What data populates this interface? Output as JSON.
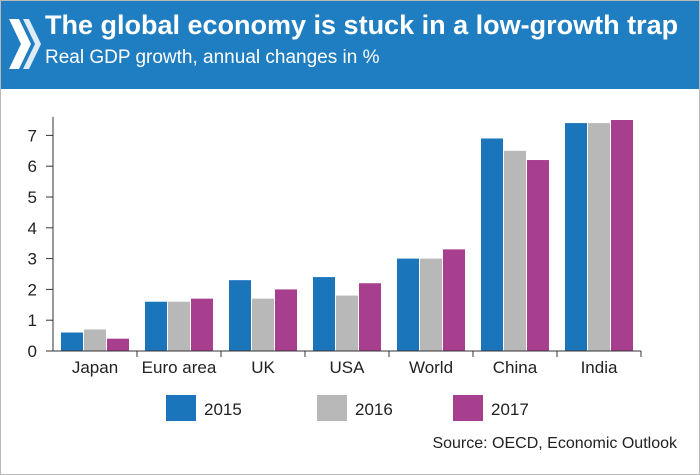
{
  "header": {
    "title": "The global economy is stuck in a low-growth trap",
    "subtitle": "Real GDP growth, annual changes in %"
  },
  "source": "Source: OECD, Economic Outlook",
  "colors": {
    "header_bg": "#1f7ec1",
    "series_2015": "#1b75bb",
    "series_2016": "#b8b8b8",
    "series_2017": "#a83e8e"
  },
  "chart_data": {
    "type": "bar",
    "title": "The global economy is stuck in a low-growth trap",
    "subtitle": "Real GDP growth, annual changes in %",
    "xlabel": "",
    "ylabel": "",
    "ylim": [
      0,
      7.6
    ],
    "yticks": [
      0,
      1,
      2,
      3,
      4,
      5,
      6,
      7
    ],
    "grid": false,
    "legend": "bottom",
    "categories": [
      "Japan",
      "Euro area",
      "UK",
      "USA",
      "World",
      "China",
      "India"
    ],
    "series": [
      {
        "name": "2015",
        "color": "#1b75bb",
        "values": [
          0.6,
          1.6,
          2.3,
          2.4,
          3.0,
          6.9,
          7.4
        ]
      },
      {
        "name": "2016",
        "color": "#b8b8b8",
        "values": [
          0.7,
          1.6,
          1.7,
          1.8,
          3.0,
          6.5,
          7.4
        ]
      },
      {
        "name": "2017",
        "color": "#a83e8e",
        "values": [
          0.4,
          1.7,
          2.0,
          2.2,
          3.3,
          6.2,
          7.5
        ]
      }
    ]
  }
}
